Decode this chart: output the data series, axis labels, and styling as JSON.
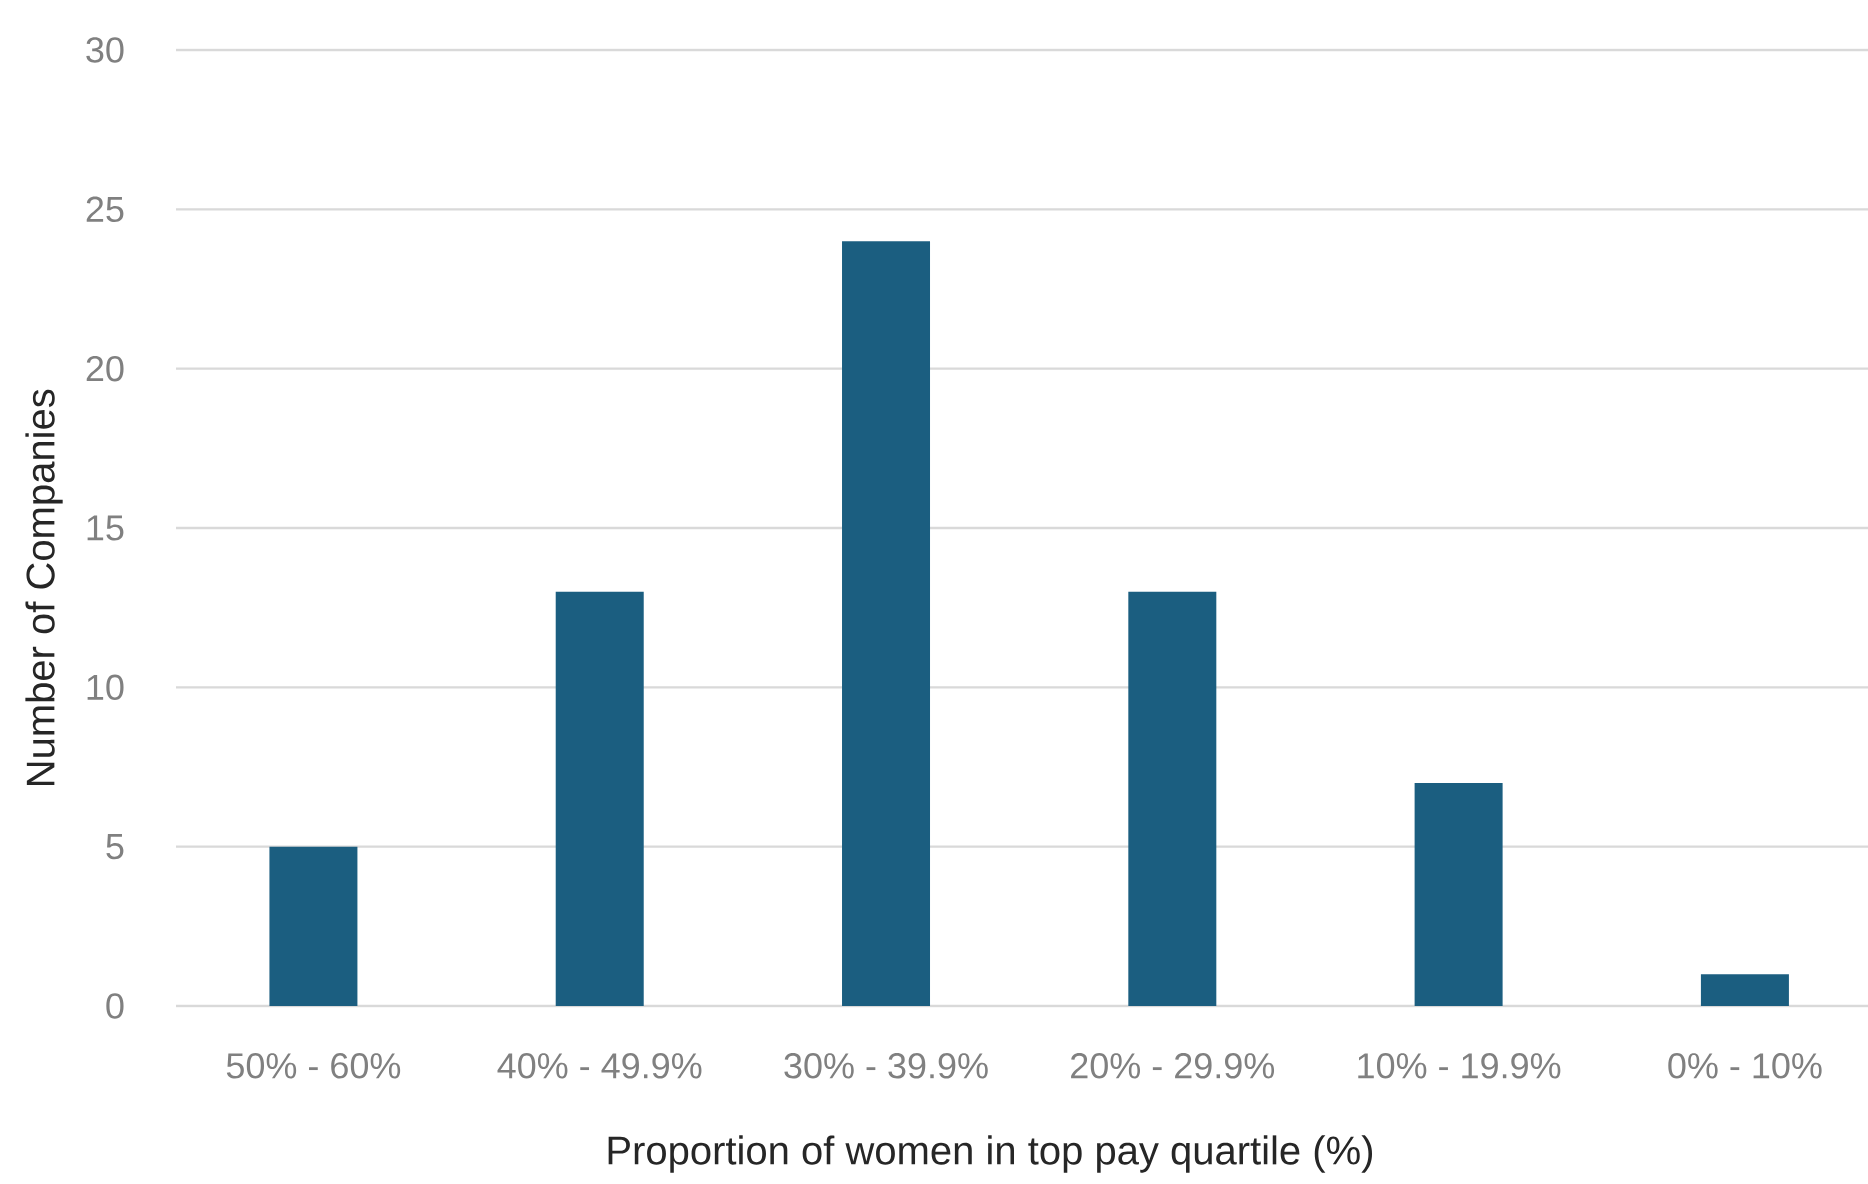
{
  "chart_data": {
    "type": "bar",
    "xlabel": "Proportion of women in top pay quartile (%)",
    "ylabel": "Number of Companies",
    "categories": [
      "50% - 60%",
      "40% - 49.9%",
      "30% - 39.9%",
      "20% - 29.9%",
      "10% - 19.9%",
      "0% - 10%"
    ],
    "values": [
      5,
      13,
      24,
      13,
      7,
      1
    ],
    "color": "#1b5e80",
    "ylim": [
      0,
      30
    ],
    "yticks": [
      0,
      5,
      10,
      15,
      20,
      25,
      30
    ],
    "grid": "y"
  }
}
